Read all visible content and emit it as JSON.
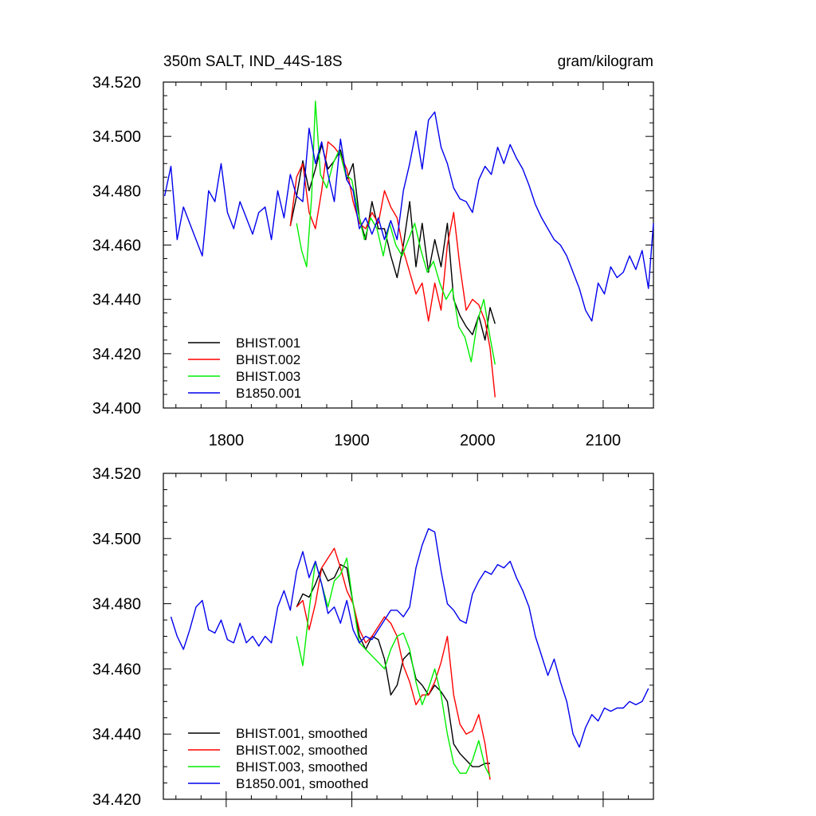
{
  "chart_data": [
    {
      "type": "line",
      "title": "350m SALT, IND_44S-18S",
      "units": "gram/kilogram",
      "xlim": [
        1750,
        2140
      ],
      "ylim": [
        34.4,
        34.52
      ],
      "x_ticks": [
        1800,
        1900,
        2000,
        2100
      ],
      "x_tick_labels": [
        "1800",
        "1900",
        "2000",
        "2100"
      ],
      "y_ticks": [
        34.4,
        34.42,
        34.44,
        34.46,
        34.48,
        34.5,
        34.52
      ],
      "y_tick_labels": [
        "34.400",
        "34.420",
        "34.440",
        "34.460",
        "34.480",
        "34.500",
        "34.520"
      ],
      "legend_position": "bottom-left",
      "series": [
        {
          "name": "BHIST.001",
          "color": "#000000",
          "x": [
            1851,
            1856,
            1861,
            1866,
            1871,
            1876,
            1881,
            1886,
            1891,
            1896,
            1901,
            1906,
            1911,
            1916,
            1921,
            1926,
            1931,
            1936,
            1941,
            1946,
            1951,
            1956,
            1961,
            1966,
            1971,
            1976,
            1981,
            1986,
            1991,
            1996,
            2001,
            2006,
            2010,
            2014
          ],
          "values": [
            34.467,
            34.478,
            34.491,
            34.48,
            34.488,
            34.497,
            34.488,
            34.491,
            34.495,
            34.484,
            34.49,
            34.47,
            34.462,
            34.476,
            34.466,
            34.466,
            34.456,
            34.448,
            34.46,
            34.476,
            34.452,
            34.468,
            34.45,
            34.462,
            34.452,
            34.468,
            34.44,
            34.434,
            34.43,
            34.427,
            34.434,
            34.425,
            34.437,
            34.431
          ]
        },
        {
          "name": "BHIST.002",
          "color": "#ff0000",
          "x": [
            1851,
            1856,
            1861,
            1866,
            1871,
            1876,
            1881,
            1886,
            1891,
            1896,
            1901,
            1906,
            1911,
            1916,
            1921,
            1926,
            1931,
            1936,
            1941,
            1946,
            1951,
            1956,
            1961,
            1966,
            1971,
            1976,
            1981,
            1986,
            1991,
            1996,
            2001,
            2006,
            2010,
            2014
          ],
          "values": [
            34.467,
            34.485,
            34.49,
            34.472,
            34.466,
            34.48,
            34.498,
            34.496,
            34.493,
            34.488,
            34.476,
            34.468,
            34.466,
            34.472,
            34.468,
            34.48,
            34.474,
            34.47,
            34.458,
            34.45,
            34.442,
            34.446,
            34.432,
            34.446,
            34.436,
            34.46,
            34.472,
            34.452,
            34.436,
            34.44,
            34.438,
            34.432,
            34.422,
            34.404
          ]
        },
        {
          "name": "BHIST.003",
          "color": "#00ee00",
          "x": [
            1856,
            1860,
            1864,
            1868,
            1871,
            1875,
            1880,
            1885,
            1890,
            1895,
            1900,
            1905,
            1910,
            1915,
            1920,
            1925,
            1930,
            1935,
            1940,
            1945,
            1950,
            1955,
            1960,
            1965,
            1970,
            1975,
            1980,
            1985,
            1990,
            1995,
            2000,
            2005,
            2010,
            2014
          ],
          "values": [
            34.468,
            34.458,
            34.452,
            34.478,
            34.513,
            34.486,
            34.481,
            34.49,
            34.495,
            34.486,
            34.484,
            34.472,
            34.462,
            34.47,
            34.466,
            34.456,
            34.468,
            34.46,
            34.456,
            34.462,
            34.468,
            34.458,
            34.45,
            34.454,
            34.446,
            34.44,
            34.444,
            34.43,
            34.426,
            34.417,
            34.432,
            34.44,
            34.426,
            34.416
          ]
        },
        {
          "name": "B1850.001",
          "color": "#0000ee",
          "x": [
            1751,
            1756,
            1761,
            1766,
            1771,
            1776,
            1781,
            1786,
            1791,
            1796,
            1801,
            1806,
            1811,
            1816,
            1821,
            1826,
            1831,
            1836,
            1841,
            1846,
            1851,
            1856,
            1861,
            1866,
            1871,
            1876,
            1881,
            1886,
            1891,
            1896,
            1901,
            1906,
            1911,
            1916,
            1921,
            1926,
            1931,
            1936,
            1941,
            1946,
            1951,
            1956,
            1961,
            1966,
            1971,
            1976,
            1981,
            1986,
            1991,
            1996,
            2001,
            2006,
            2011,
            2016,
            2021,
            2026,
            2031,
            2036,
            2041,
            2046,
            2051,
            2056,
            2061,
            2066,
            2071,
            2076,
            2081,
            2086,
            2091,
            2096,
            2101,
            2106,
            2111,
            2116,
            2121,
            2126,
            2131,
            2136,
            2140
          ],
          "values": [
            34.478,
            34.489,
            34.462,
            34.474,
            34.468,
            34.462,
            34.456,
            34.48,
            34.476,
            34.49,
            34.472,
            34.466,
            34.476,
            34.47,
            34.464,
            34.472,
            34.474,
            34.462,
            34.48,
            34.47,
            34.486,
            34.478,
            34.476,
            34.503,
            34.49,
            34.498,
            34.486,
            34.476,
            34.499,
            34.484,
            34.48,
            34.466,
            34.47,
            34.464,
            34.47,
            34.462,
            34.469,
            34.462,
            34.48,
            34.49,
            34.502,
            34.488,
            34.506,
            34.509,
            34.496,
            34.49,
            34.481,
            34.477,
            34.476,
            34.472,
            34.484,
            34.489,
            34.486,
            34.496,
            34.49,
            34.497,
            34.492,
            34.488,
            34.482,
            34.475,
            34.47,
            34.466,
            34.462,
            34.46,
            34.456,
            34.45,
            34.444,
            34.436,
            34.432,
            34.446,
            34.442,
            34.452,
            34.448,
            34.45,
            34.456,
            34.451,
            34.458,
            34.444,
            34.468
          ]
        }
      ]
    },
    {
      "type": "line",
      "xlim": [
        1750,
        2140
      ],
      "ylim": [
        34.42,
        34.52
      ],
      "x_ticks": [
        1800,
        1900,
        2000,
        2100
      ],
      "y_ticks": [
        34.42,
        34.44,
        34.46,
        34.48,
        34.5,
        34.52
      ],
      "y_tick_labels": [
        "34.420",
        "34.440",
        "34.460",
        "34.480",
        "34.500",
        "34.520"
      ],
      "legend_position": "bottom-left",
      "series": [
        {
          "name": "BHIST.001, smoothed",
          "color": "#000000",
          "x": [
            1856,
            1861,
            1866,
            1871,
            1876,
            1881,
            1886,
            1891,
            1896,
            1901,
            1906,
            1911,
            1916,
            1921,
            1926,
            1931,
            1936,
            1941,
            1946,
            1951,
            1956,
            1961,
            1966,
            1971,
            1976,
            1981,
            1986,
            1991,
            1996,
            2001,
            2006,
            2010
          ],
          "values": [
            34.479,
            34.483,
            34.482,
            34.486,
            34.491,
            34.487,
            34.488,
            34.492,
            34.491,
            34.48,
            34.47,
            34.466,
            34.47,
            34.469,
            34.463,
            34.452,
            34.455,
            34.463,
            34.465,
            34.457,
            34.455,
            34.452,
            34.455,
            34.453,
            34.45,
            34.437,
            34.434,
            34.432,
            34.43,
            34.43,
            34.431,
            34.431
          ]
        },
        {
          "name": "BHIST.002, smoothed",
          "color": "#ff0000",
          "x": [
            1856,
            1861,
            1866,
            1871,
            1876,
            1881,
            1886,
            1891,
            1896,
            1901,
            1906,
            1911,
            1916,
            1921,
            1926,
            1931,
            1936,
            1941,
            1946,
            1951,
            1956,
            1961,
            1966,
            1971,
            1976,
            1981,
            1986,
            1991,
            1996,
            2001,
            2006,
            2010
          ],
          "values": [
            34.479,
            34.481,
            34.472,
            34.48,
            34.491,
            34.494,
            34.497,
            34.491,
            34.484,
            34.48,
            34.472,
            34.468,
            34.47,
            34.473,
            34.476,
            34.474,
            34.47,
            34.461,
            34.456,
            34.449,
            34.452,
            34.452,
            34.456,
            34.462,
            34.47,
            34.452,
            34.443,
            34.44,
            34.441,
            34.446,
            34.437,
            34.426
          ]
        },
        {
          "name": "BHIST.003, smoothed",
          "color": "#00ee00",
          "x": [
            1856,
            1861,
            1866,
            1871,
            1876,
            1881,
            1886,
            1891,
            1896,
            1901,
            1906,
            1911,
            1916,
            1921,
            1926,
            1931,
            1936,
            1941,
            1946,
            1951,
            1956,
            1961,
            1966,
            1971,
            1976,
            1981,
            1986,
            1991,
            1996,
            2001,
            2006,
            2010
          ],
          "values": [
            34.47,
            34.461,
            34.478,
            34.493,
            34.486,
            34.479,
            34.487,
            34.489,
            34.494,
            34.48,
            34.468,
            34.466,
            34.464,
            34.462,
            34.46,
            34.466,
            34.47,
            34.471,
            34.466,
            34.456,
            34.449,
            34.454,
            34.46,
            34.452,
            34.44,
            34.431,
            34.428,
            34.428,
            34.432,
            34.438,
            34.43,
            34.427
          ]
        },
        {
          "name": "B1850.001, smoothed",
          "color": "#0000ee",
          "x": [
            1756,
            1761,
            1766,
            1771,
            1776,
            1781,
            1786,
            1791,
            1796,
            1801,
            1806,
            1811,
            1816,
            1821,
            1826,
            1831,
            1836,
            1841,
            1846,
            1851,
            1856,
            1861,
            1866,
            1871,
            1876,
            1881,
            1886,
            1891,
            1896,
            1901,
            1906,
            1911,
            1916,
            1921,
            1926,
            1931,
            1936,
            1941,
            1946,
            1951,
            1956,
            1961,
            1966,
            1971,
            1976,
            1981,
            1986,
            1991,
            1996,
            2001,
            2006,
            2011,
            2016,
            2021,
            2026,
            2031,
            2036,
            2041,
            2046,
            2051,
            2056,
            2061,
            2066,
            2071,
            2076,
            2081,
            2086,
            2091,
            2096,
            2101,
            2106,
            2111,
            2116,
            2121,
            2126,
            2131,
            2136
          ],
          "values": [
            34.476,
            34.47,
            34.466,
            34.472,
            34.479,
            34.481,
            34.472,
            34.471,
            34.475,
            34.469,
            34.468,
            34.474,
            34.468,
            34.47,
            34.467,
            34.47,
            34.468,
            34.479,
            34.484,
            34.478,
            34.49,
            34.496,
            34.488,
            34.493,
            34.486,
            34.477,
            34.479,
            34.474,
            34.481,
            34.472,
            34.468,
            34.47,
            34.469,
            34.472,
            34.475,
            34.478,
            34.478,
            34.476,
            34.479,
            34.491,
            34.498,
            34.503,
            34.502,
            34.49,
            34.48,
            34.478,
            34.475,
            34.474,
            34.483,
            34.487,
            34.49,
            34.489,
            34.492,
            34.491,
            34.493,
            34.488,
            34.484,
            34.479,
            34.47,
            34.464,
            34.458,
            34.463,
            34.456,
            34.45,
            34.44,
            34.436,
            34.442,
            34.446,
            34.444,
            34.448,
            34.447,
            34.448,
            34.448,
            34.45,
            34.449,
            34.45,
            34.454
          ]
        }
      ]
    }
  ]
}
